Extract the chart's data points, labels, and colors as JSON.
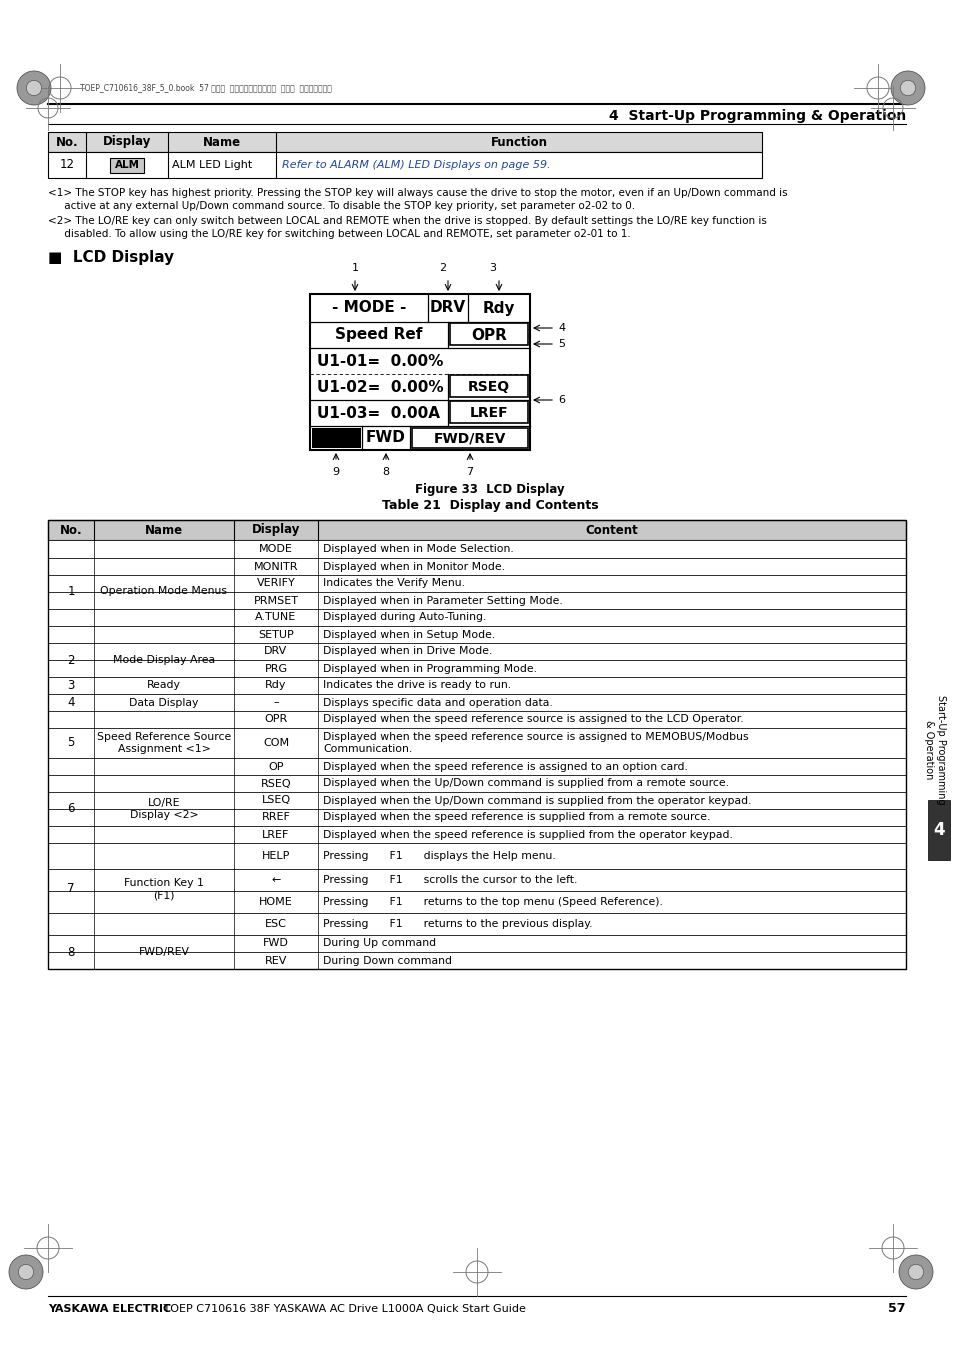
{
  "page_title": "4  Start-Up Programming & Operation",
  "header_file": "TOEP_C710616_38F_5_0.book  57 ページ  ２０１３年１２月４日  水曜日  午前９時５６分",
  "top_table_headers": [
    "No.",
    "Display",
    "Name",
    "Function"
  ],
  "top_table_row": [
    "12",
    "ALM",
    "ALM LED Light",
    "Refer to ALARM (ALM) LED Displays on page 59."
  ],
  "footnote1": "<1> The STOP key has highest priority. Pressing the STOP key will always cause the drive to stop the motor, even if an Up/Down command is\n     active at any external Up/Down command source. To disable the STOP key priority, set parameter o2-02 to 0.",
  "footnote2": "<2> The LO/RE key can only switch between LOCAL and REMOTE when the drive is stopped. By default settings the LO/RE key function is\n     disabled. To allow using the LO/RE key for switching between LOCAL and REMOTE, set parameter o2-01 to 1.",
  "lcd_section_title": "■  LCD Display",
  "figure_caption": "Figure 33  LCD Display",
  "table_caption": "Table 21  Display and Contents",
  "main_table_headers": [
    "No.",
    "Name",
    "Display",
    "Content"
  ],
  "main_table_rows": [
    [
      "1",
      "Operation Mode Menus",
      "MODE",
      "Displayed when in Mode Selection."
    ],
    [
      "",
      "",
      "MONITR",
      "Displayed when in Monitor Mode."
    ],
    [
      "",
      "",
      "VERIFY",
      "Indicates the Verify Menu."
    ],
    [
      "",
      "",
      "PRMSET",
      "Displayed when in Parameter Setting Mode."
    ],
    [
      "",
      "",
      "A.TUNE",
      "Displayed during Auto-Tuning."
    ],
    [
      "",
      "",
      "SETUP",
      "Displayed when in Setup Mode."
    ],
    [
      "2",
      "Mode Display Area",
      "DRV",
      "Displayed when in Drive Mode."
    ],
    [
      "",
      "",
      "PRG",
      "Displayed when in Programming Mode."
    ],
    [
      "3",
      "Ready",
      "Rdy",
      "Indicates the drive is ready to run."
    ],
    [
      "4",
      "Data Display",
      "–",
      "Displays specific data and operation data."
    ],
    [
      "5",
      "Speed Reference Source\nAssignment <1>",
      "OPR",
      "Displayed when the speed reference source is assigned to the LCD Operator."
    ],
    [
      "",
      "",
      "COM",
      "Displayed when the speed reference source is assigned to MEMOBUS/Modbus\nCommunication."
    ],
    [
      "",
      "",
      "OP",
      "Displayed when the speed reference is assigned to an option card."
    ],
    [
      "6",
      "LO/RE\nDisplay <2>",
      "RSEQ",
      "Displayed when the Up/Down command is supplied from a remote source."
    ],
    [
      "",
      "",
      "LSEQ",
      "Displayed when the Up/Down command is supplied from the operator keypad."
    ],
    [
      "",
      "",
      "RREF",
      "Displayed when the speed reference is supplied from a remote source."
    ],
    [
      "",
      "",
      "LREF",
      "Displayed when the speed reference is supplied from the operator keypad."
    ],
    [
      "7",
      "Function Key 1\n(F1)",
      "HELP",
      "Pressing      F1      displays the Help menu."
    ],
    [
      "",
      "",
      "←",
      "Pressing      F1      scrolls the cursor to the left."
    ],
    [
      "",
      "",
      "HOME",
      "Pressing      F1      returns to the top menu (Speed Reference)."
    ],
    [
      "",
      "",
      "ESC",
      "Pressing      F1      returns to the previous display."
    ],
    [
      "8",
      "FWD/REV",
      "FWD",
      "During Up command"
    ],
    [
      "",
      "",
      "REV",
      "During Down command"
    ]
  ],
  "side_label": "Start-Up Programming\n& Operation",
  "side_number": "4",
  "footer_left_bold": "YASKAWA ELECTRIC",
  "footer_left_normal": " TOEP C710616 38F YASKAWA AC Drive L1000A Quick Start Guide",
  "footer_page": "57",
  "row_groups": {
    "1": [
      0,
      5,
      "Operation Mode Menus"
    ],
    "2": [
      6,
      7,
      "Mode Display Area"
    ],
    "3": [
      8,
      8,
      "Ready"
    ],
    "4": [
      9,
      9,
      "Data Display"
    ],
    "5": [
      10,
      12,
      "Speed Reference Source\nAssignment <1>"
    ],
    "6": [
      13,
      16,
      "LO/RE\nDisplay <2>"
    ],
    "7": [
      17,
      20,
      "Function Key 1\n(F1)"
    ],
    "8": [
      21,
      22,
      "FWD/REV"
    ]
  },
  "rh_list": [
    18,
    17,
    17,
    17,
    17,
    17,
    17,
    17,
    17,
    17,
    17,
    30,
    17,
    17,
    17,
    17,
    17,
    26,
    22,
    22,
    22,
    17,
    17
  ]
}
